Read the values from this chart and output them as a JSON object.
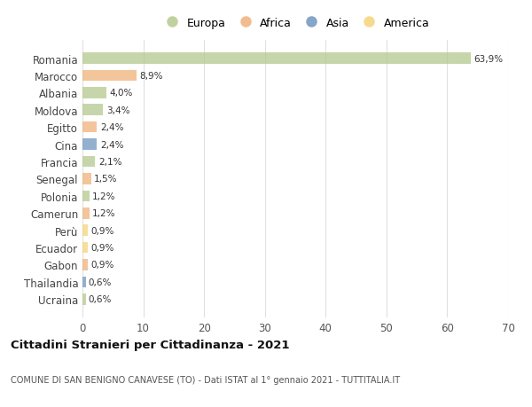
{
  "title": "Cittadini Stranieri per Cittadinanza - 2021",
  "subtitle": "COMUNE DI SAN BENIGNO CANAVESE (TO) - Dati ISTAT al 1° gennaio 2021 - TUTTITALIA.IT",
  "countries": [
    "Romania",
    "Marocco",
    "Albania",
    "Moldova",
    "Egitto",
    "Cina",
    "Francia",
    "Senegal",
    "Polonia",
    "Camerun",
    "Perù",
    "Ecuador",
    "Gabon",
    "Thailandia",
    "Ucraina"
  ],
  "values": [
    63.9,
    8.9,
    4.0,
    3.4,
    2.4,
    2.4,
    2.1,
    1.5,
    1.2,
    1.2,
    0.9,
    0.9,
    0.9,
    0.6,
    0.6
  ],
  "labels": [
    "63,9%",
    "8,9%",
    "4,0%",
    "3,4%",
    "2,4%",
    "2,4%",
    "2,1%",
    "1,5%",
    "1,2%",
    "1,2%",
    "0,9%",
    "0,9%",
    "0,9%",
    "0,6%",
    "0,6%"
  ],
  "colors": [
    "#b5c98e",
    "#f0b27a",
    "#b5c98e",
    "#b5c98e",
    "#f0b27a",
    "#7096c0",
    "#b5c98e",
    "#f0b27a",
    "#b5c98e",
    "#f0b27a",
    "#f5d47a",
    "#f5d47a",
    "#f0b27a",
    "#7096c0",
    "#b5c98e"
  ],
  "legend": [
    {
      "label": "Europa",
      "color": "#b5c98e"
    },
    {
      "label": "Africa",
      "color": "#f0b27a"
    },
    {
      "label": "Asia",
      "color": "#7096c0"
    },
    {
      "label": "America",
      "color": "#f5d47a"
    }
  ],
  "xlim": [
    0,
    70
  ],
  "xticks": [
    0,
    10,
    20,
    30,
    40,
    50,
    60,
    70
  ],
  "background_color": "#ffffff",
  "grid_color": "#e0e0e0"
}
